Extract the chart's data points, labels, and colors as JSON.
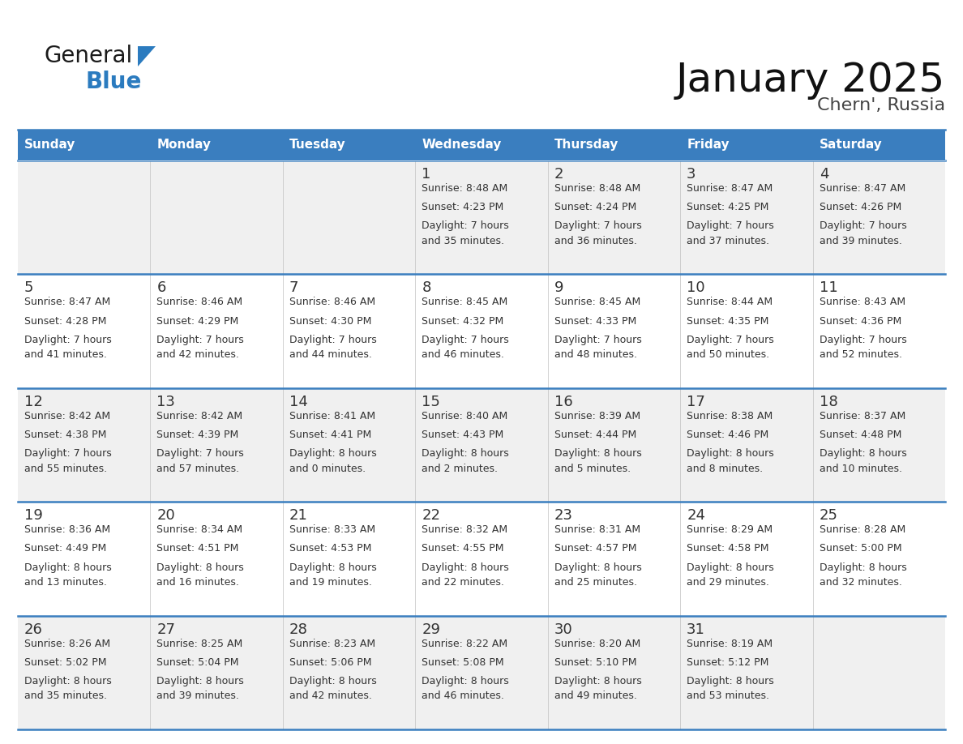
{
  "title": "January 2025",
  "subtitle": "Chern', Russia",
  "header_bg": "#3a7ebf",
  "header_text_color": "#ffffff",
  "cell_bg_odd": "#f0f0f0",
  "cell_bg_even": "#ffffff",
  "day_number_color": "#333333",
  "cell_text_color": "#333333",
  "grid_line_color": "#3a7ebf",
  "days_of_week": [
    "Sunday",
    "Monday",
    "Tuesday",
    "Wednesday",
    "Thursday",
    "Friday",
    "Saturday"
  ],
  "calendar_data": [
    [
      {
        "day": "",
        "sunrise": "",
        "sunset": "",
        "daylight": ""
      },
      {
        "day": "",
        "sunrise": "",
        "sunset": "",
        "daylight": ""
      },
      {
        "day": "",
        "sunrise": "",
        "sunset": "",
        "daylight": ""
      },
      {
        "day": "1",
        "sunrise": "8:48 AM",
        "sunset": "4:23 PM",
        "daylight": "7 hours\nand 35 minutes."
      },
      {
        "day": "2",
        "sunrise": "8:48 AM",
        "sunset": "4:24 PM",
        "daylight": "7 hours\nand 36 minutes."
      },
      {
        "day": "3",
        "sunrise": "8:47 AM",
        "sunset": "4:25 PM",
        "daylight": "7 hours\nand 37 minutes."
      },
      {
        "day": "4",
        "sunrise": "8:47 AM",
        "sunset": "4:26 PM",
        "daylight": "7 hours\nand 39 minutes."
      }
    ],
    [
      {
        "day": "5",
        "sunrise": "8:47 AM",
        "sunset": "4:28 PM",
        "daylight": "7 hours\nand 41 minutes."
      },
      {
        "day": "6",
        "sunrise": "8:46 AM",
        "sunset": "4:29 PM",
        "daylight": "7 hours\nand 42 minutes."
      },
      {
        "day": "7",
        "sunrise": "8:46 AM",
        "sunset": "4:30 PM",
        "daylight": "7 hours\nand 44 minutes."
      },
      {
        "day": "8",
        "sunrise": "8:45 AM",
        "sunset": "4:32 PM",
        "daylight": "7 hours\nand 46 minutes."
      },
      {
        "day": "9",
        "sunrise": "8:45 AM",
        "sunset": "4:33 PM",
        "daylight": "7 hours\nand 48 minutes."
      },
      {
        "day": "10",
        "sunrise": "8:44 AM",
        "sunset": "4:35 PM",
        "daylight": "7 hours\nand 50 minutes."
      },
      {
        "day": "11",
        "sunrise": "8:43 AM",
        "sunset": "4:36 PM",
        "daylight": "7 hours\nand 52 minutes."
      }
    ],
    [
      {
        "day": "12",
        "sunrise": "8:42 AM",
        "sunset": "4:38 PM",
        "daylight": "7 hours\nand 55 minutes."
      },
      {
        "day": "13",
        "sunrise": "8:42 AM",
        "sunset": "4:39 PM",
        "daylight": "7 hours\nand 57 minutes."
      },
      {
        "day": "14",
        "sunrise": "8:41 AM",
        "sunset": "4:41 PM",
        "daylight": "8 hours\nand 0 minutes."
      },
      {
        "day": "15",
        "sunrise": "8:40 AM",
        "sunset": "4:43 PM",
        "daylight": "8 hours\nand 2 minutes."
      },
      {
        "day": "16",
        "sunrise": "8:39 AM",
        "sunset": "4:44 PM",
        "daylight": "8 hours\nand 5 minutes."
      },
      {
        "day": "17",
        "sunrise": "8:38 AM",
        "sunset": "4:46 PM",
        "daylight": "8 hours\nand 8 minutes."
      },
      {
        "day": "18",
        "sunrise": "8:37 AM",
        "sunset": "4:48 PM",
        "daylight": "8 hours\nand 10 minutes."
      }
    ],
    [
      {
        "day": "19",
        "sunrise": "8:36 AM",
        "sunset": "4:49 PM",
        "daylight": "8 hours\nand 13 minutes."
      },
      {
        "day": "20",
        "sunrise": "8:34 AM",
        "sunset": "4:51 PM",
        "daylight": "8 hours\nand 16 minutes."
      },
      {
        "day": "21",
        "sunrise": "8:33 AM",
        "sunset": "4:53 PM",
        "daylight": "8 hours\nand 19 minutes."
      },
      {
        "day": "22",
        "sunrise": "8:32 AM",
        "sunset": "4:55 PM",
        "daylight": "8 hours\nand 22 minutes."
      },
      {
        "day": "23",
        "sunrise": "8:31 AM",
        "sunset": "4:57 PM",
        "daylight": "8 hours\nand 25 minutes."
      },
      {
        "day": "24",
        "sunrise": "8:29 AM",
        "sunset": "4:58 PM",
        "daylight": "8 hours\nand 29 minutes."
      },
      {
        "day": "25",
        "sunrise": "8:28 AM",
        "sunset": "5:00 PM",
        "daylight": "8 hours\nand 32 minutes."
      }
    ],
    [
      {
        "day": "26",
        "sunrise": "8:26 AM",
        "sunset": "5:02 PM",
        "daylight": "8 hours\nand 35 minutes."
      },
      {
        "day": "27",
        "sunrise": "8:25 AM",
        "sunset": "5:04 PM",
        "daylight": "8 hours\nand 39 minutes."
      },
      {
        "day": "28",
        "sunrise": "8:23 AM",
        "sunset": "5:06 PM",
        "daylight": "8 hours\nand 42 minutes."
      },
      {
        "day": "29",
        "sunrise": "8:22 AM",
        "sunset": "5:08 PM",
        "daylight": "8 hours\nand 46 minutes."
      },
      {
        "day": "30",
        "sunrise": "8:20 AM",
        "sunset": "5:10 PM",
        "daylight": "8 hours\nand 49 minutes."
      },
      {
        "day": "31",
        "sunrise": "8:19 AM",
        "sunset": "5:12 PM",
        "daylight": "8 hours\nand 53 minutes."
      },
      {
        "day": "",
        "sunrise": "",
        "sunset": "",
        "daylight": ""
      }
    ]
  ],
  "fig_width": 11.88,
  "fig_height": 9.18,
  "dpi": 100,
  "title_fontsize": 36,
  "subtitle_fontsize": 16,
  "header_fontsize": 11,
  "day_num_fontsize": 13,
  "cell_text_fontsize": 9
}
